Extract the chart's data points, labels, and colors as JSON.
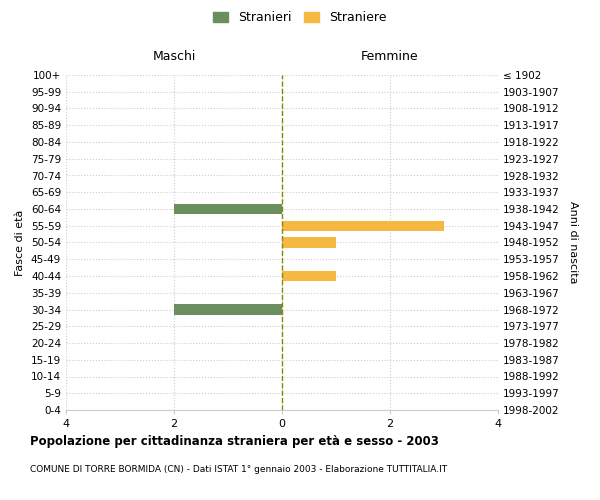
{
  "age_groups": [
    "100+",
    "95-99",
    "90-94",
    "85-89",
    "80-84",
    "75-79",
    "70-74",
    "65-69",
    "60-64",
    "55-59",
    "50-54",
    "45-49",
    "40-44",
    "35-39",
    "30-34",
    "25-29",
    "20-24",
    "15-19",
    "10-14",
    "5-9",
    "0-4"
  ],
  "birth_years": [
    "≤ 1902",
    "1903-1907",
    "1908-1912",
    "1913-1917",
    "1918-1922",
    "1923-1927",
    "1928-1932",
    "1933-1937",
    "1938-1942",
    "1943-1947",
    "1948-1952",
    "1953-1957",
    "1958-1962",
    "1963-1967",
    "1968-1972",
    "1973-1977",
    "1978-1982",
    "1983-1987",
    "1988-1992",
    "1993-1997",
    "1998-2002"
  ],
  "maschi_values": [
    0,
    0,
    0,
    0,
    0,
    0,
    0,
    0,
    2,
    0,
    0,
    0,
    0,
    0,
    2,
    0,
    0,
    0,
    0,
    0,
    0
  ],
  "femmine_values": [
    0,
    0,
    0,
    0,
    0,
    0,
    0,
    0,
    0,
    3,
    1,
    0,
    1,
    0,
    0,
    0,
    0,
    0,
    0,
    0,
    0
  ],
  "maschi_color": "#6b8e5e",
  "femmine_color": "#f5b942",
  "title": "Popolazione per cittadinanza straniera per età e sesso - 2003",
  "subtitle": "COMUNE DI TORRE BORMIDA (CN) - Dati ISTAT 1° gennaio 2003 - Elaborazione TUTTITALIA.IT",
  "header_left": "Maschi",
  "header_right": "Femmine",
  "ylabel_left": "Fasce di età",
  "ylabel_right": "Anni di nascita",
  "legend_maschi": "Stranieri",
  "legend_femmine": "Straniere",
  "xlim": 4,
  "background_color": "#ffffff",
  "grid_color": "#cccccc",
  "zero_line_color": "#888800"
}
